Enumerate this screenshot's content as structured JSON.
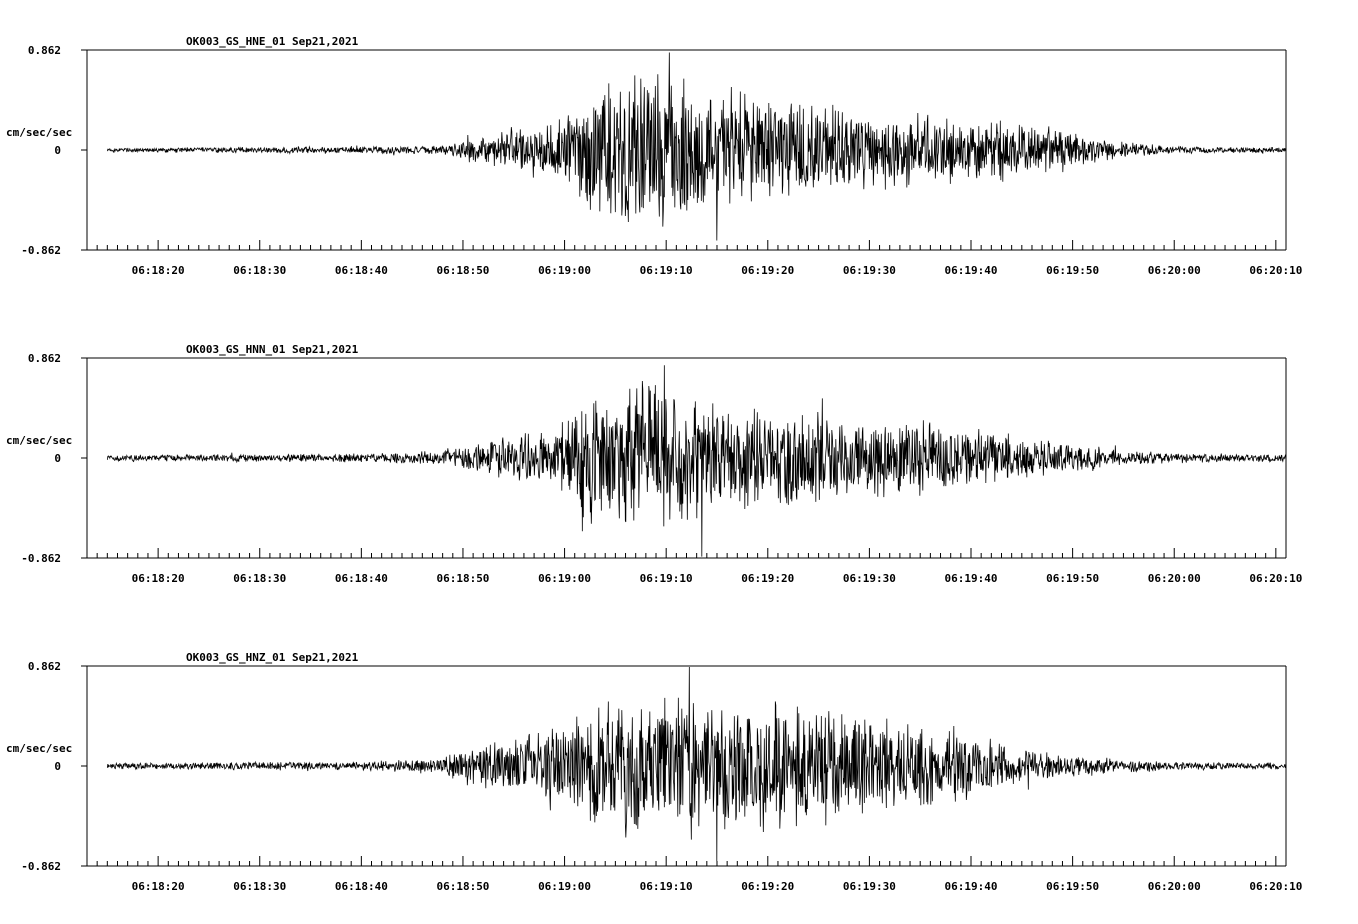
{
  "chart_data": [
    {
      "type": "line",
      "title": "OK003_GS_HNE_01  Sep21,2021",
      "ylabel": "cm/sec/sec",
      "y_tick_labels": [
        "0.862",
        "0",
        "-0.862"
      ],
      "ylim": [
        -0.862,
        0.862
      ],
      "x_tick_labels": [
        "06:18:20",
        "06:18:30",
        "06:18:40",
        "06:18:50",
        "06:19:00",
        "06:19:10",
        "06:19:20",
        "06:19:30",
        "06:19:40",
        "06:19:50",
        "06:20:00",
        "06:20:10"
      ],
      "xlim": [
        "06:18:13",
        "06:20:11"
      ],
      "trace_start": "06:18:15",
      "grid": false,
      "series": [
        {
          "envelope_time_s": [
            0,
            33,
            35,
            38,
            40,
            42,
            45,
            48,
            50,
            52,
            55,
            58,
            60,
            62,
            65,
            68,
            70,
            72,
            75,
            80,
            85,
            90,
            95,
            98,
            100,
            103,
            105,
            108,
            110
          ],
          "envelope_amplitude": [
            0.02,
            0.04,
            0.1,
            0.15,
            0.22,
            0.25,
            0.35,
            0.62,
            0.7,
            0.74,
            0.75,
            0.7,
            0.62,
            0.55,
            0.52,
            0.45,
            0.44,
            0.42,
            0.38,
            0.34,
            0.3,
            0.26,
            0.18,
            0.1,
            0.08,
            0.05,
            0.04,
            0.035,
            0.03
          ],
          "peak_positive": 0.84,
          "peak_negative": -0.78
        }
      ]
    },
    {
      "type": "line",
      "title": "OK003_GS_HNN_01  Sep21,2021",
      "ylabel": "cm/sec/sec",
      "y_tick_labels": [
        "0.862",
        "0",
        "-0.862"
      ],
      "ylim": [
        -0.862,
        0.862
      ],
      "x_tick_labels": [
        "06:18:20",
        "06:18:30",
        "06:18:40",
        "06:18:50",
        "06:19:00",
        "06:19:10",
        "06:19:20",
        "06:19:30",
        "06:19:40",
        "06:19:50",
        "06:20:00",
        "06:20:10"
      ],
      "xlim": [
        "06:18:13",
        "06:20:11"
      ],
      "trace_start": "06:18:15",
      "grid": false,
      "series": [
        {
          "envelope_time_s": [
            0,
            25,
            30,
            33,
            35,
            38,
            40,
            42,
            45,
            48,
            50,
            52,
            55,
            58,
            60,
            62,
            65,
            68,
            70,
            72,
            75,
            80,
            85,
            90,
            95,
            98,
            100,
            103,
            105,
            108,
            110
          ],
          "envelope_amplitude": [
            0.03,
            0.04,
            0.06,
            0.08,
            0.12,
            0.18,
            0.22,
            0.25,
            0.35,
            0.58,
            0.68,
            0.72,
            0.7,
            0.62,
            0.55,
            0.5,
            0.46,
            0.44,
            0.42,
            0.4,
            0.38,
            0.34,
            0.28,
            0.2,
            0.14,
            0.1,
            0.07,
            0.06,
            0.05,
            0.04,
            0.035
          ],
          "peak_positive": 0.8,
          "peak_negative": -0.85
        }
      ]
    },
    {
      "type": "line",
      "title": "OK003_GS_HNZ_01  Sep21,2021",
      "ylabel": "cm/sec/sec",
      "y_tick_labels": [
        "0.862",
        "0",
        "-0.862"
      ],
      "ylim": [
        -0.862,
        0.862
      ],
      "x_tick_labels": [
        "06:18:20",
        "06:18:30",
        "06:18:40",
        "06:18:50",
        "06:19:00",
        "06:19:10",
        "06:19:20",
        "06:19:30",
        "06:19:40",
        "06:19:50",
        "06:20:00",
        "06:20:10"
      ],
      "xlim": [
        "06:18:13",
        "06:20:11"
      ],
      "trace_start": "06:18:15",
      "grid": false,
      "series": [
        {
          "envelope_time_s": [
            0,
            25,
            30,
            33,
            35,
            38,
            40,
            42,
            45,
            48,
            50,
            52,
            55,
            58,
            60,
            62,
            65,
            68,
            70,
            72,
            75,
            80,
            85,
            90,
            95,
            98,
            100,
            103,
            105,
            108,
            110
          ],
          "envelope_amplitude": [
            0.03,
            0.04,
            0.06,
            0.09,
            0.15,
            0.22,
            0.25,
            0.3,
            0.4,
            0.6,
            0.65,
            0.66,
            0.66,
            0.64,
            0.62,
            0.6,
            0.6,
            0.58,
            0.55,
            0.52,
            0.46,
            0.4,
            0.3,
            0.18,
            0.1,
            0.08,
            0.06,
            0.05,
            0.04,
            0.04,
            0.035
          ],
          "peak_positive": 0.86,
          "peak_negative": -0.82
        }
      ]
    }
  ]
}
